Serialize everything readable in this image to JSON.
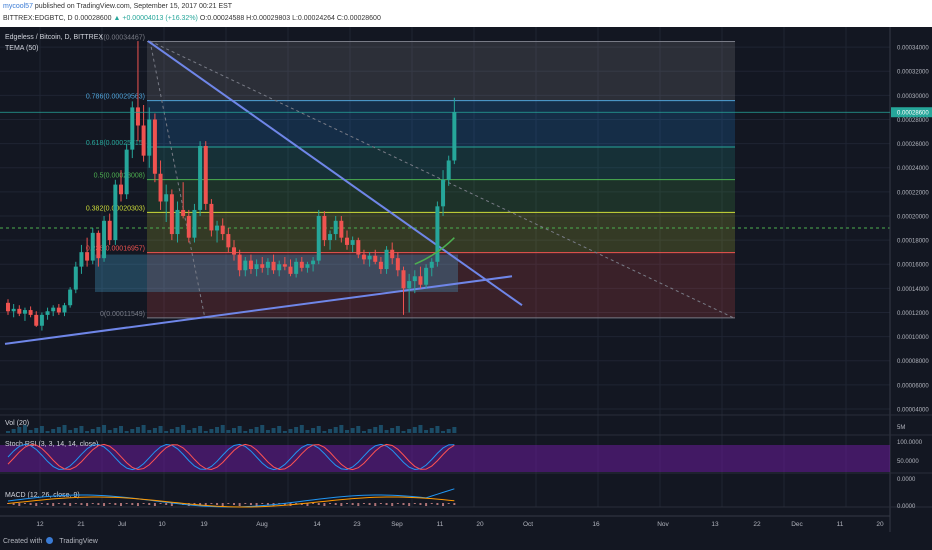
{
  "header": {
    "user": "mycool57",
    "published_text": " published on TradingView.com, September 15, 2017 00:21 EST",
    "symbol_line": "BITTREX:EDGBTC, D  0.00028600",
    "change": "▲ +0.00004013 (+16.32%)",
    "ohlc": "O:0.00024588  H:0.00029803  L:0.00024264  C:0.00028600"
  },
  "legend": {
    "title": "Edgeless / Bitcoin, D, BITTREX",
    "tema": "TEMA (50)",
    "vol": "Vol (20)",
    "stoch": "Stoch RSI (3, 3, 14, 14, close)",
    "macd": "MACD (12, 26, close, 9)"
  },
  "colors": {
    "up": "#26a69a",
    "down": "#ef5350",
    "trendline": "#6f86e8",
    "stoch_k": "#2196f3",
    "stoch_d": "#ff5252",
    "stoch_band": "#6a1b9a",
    "macd": "#2196f3",
    "signal": "#ff9800"
  },
  "chart_data": {
    "type": "candlestick",
    "symbol": "EDGBTC",
    "timeframe": "D",
    "ylim": [
      3.5e-05,
      0.000355
    ],
    "y_ticks": [
      "0.00034000",
      "0.00032000",
      "0.00030000",
      "0.00028000",
      "0.00026000",
      "0.00024000",
      "0.00022000",
      "0.00020000",
      "0.00018000",
      "0.00016000",
      "0.00014000",
      "0.00012000",
      "0.00010000",
      "0.00008000",
      "0.00006000",
      "0.00004000"
    ],
    "x_ticks": [
      "12",
      "21",
      "Jul",
      "10",
      "19",
      "Aug",
      "14",
      "23",
      "Sep",
      "11",
      "20",
      "Oct",
      "16",
      "Nov",
      "13",
      "22",
      "Dec",
      "11",
      "20"
    ],
    "last_price_label": "0.00028600",
    "fib_levels": [
      {
        "label": "1(0.00034467)",
        "value": 0.00034467,
        "color": "#787b86"
      },
      {
        "label": "0.786(0.00029563)",
        "value": 0.00029563,
        "color": "#4fa3d8"
      },
      {
        "label": "0.618(0.00025715)",
        "value": 0.00025715,
        "color": "#26a69a"
      },
      {
        "label": "0.5(0.00023008)",
        "value": 0.00023008,
        "color": "#4caf50"
      },
      {
        "label": "0.382(0.00020303)",
        "value": 0.00020303,
        "color": "#cddc39"
      },
      {
        "label": "0.236(0.00016957)",
        "value": 0.00016957,
        "color": "#ef5350"
      },
      {
        "label": "0(0.00011549)",
        "value": 0.00011549,
        "color": "#787b86"
      }
    ],
    "candles_ohlc": [
      [
        0.000128,
        0.000131,
        0.000118,
        0.000121
      ],
      [
        0.000121,
        0.000127,
        0.000116,
        0.000123
      ],
      [
        0.000123,
        0.000126,
        0.000117,
        0.000119
      ],
      [
        0.000119,
        0.000124,
        0.000113,
        0.000122
      ],
      [
        0.000122,
        0.000125,
        0.000116,
        0.000118
      ],
      [
        0.000118,
        0.000121,
        0.000108,
        0.000109
      ],
      [
        0.000109,
        0.00012,
        0.000105,
        0.000118
      ],
      [
        0.000118,
        0.000124,
        0.000114,
        0.000121
      ],
      [
        0.000121,
        0.000126,
        0.000117,
        0.000124
      ],
      [
        0.000124,
        0.000127,
        0.000118,
        0.00012
      ],
      [
        0.00012,
        0.000128,
        0.000117,
        0.000126
      ],
      [
        0.000126,
        0.000141,
        0.000124,
        0.000139
      ],
      [
        0.000139,
        0.000162,
        0.000136,
        0.000158
      ],
      [
        0.000158,
        0.000176,
        0.000152,
        0.00017
      ],
      [
        0.00017,
        0.000182,
        0.000158,
        0.000163
      ],
      [
        0.000163,
        0.00019,
        0.00016,
        0.000186
      ],
      [
        0.000186,
        0.000188,
        0.000158,
        0.000165
      ],
      [
        0.000165,
        0.0002,
        0.000162,
        0.000196
      ],
      [
        0.000196,
        0.000202,
        0.000176,
        0.00018
      ],
      [
        0.00018,
        0.00023,
        0.000176,
        0.000226
      ],
      [
        0.000226,
        0.000238,
        0.000212,
        0.000218
      ],
      [
        0.000218,
        0.00026,
        0.000214,
        0.000255
      ],
      [
        0.000255,
        0.000295,
        0.000248,
        0.00029
      ],
      [
        0.00029,
        0.000345,
        0.000262,
        0.000275
      ],
      [
        0.000275,
        0.000292,
        0.000245,
        0.00025
      ],
      [
        0.00025,
        0.00029,
        0.00024,
        0.00028
      ],
      [
        0.00028,
        0.000285,
        0.000228,
        0.000235
      ],
      [
        0.000235,
        0.000246,
        0.000205,
        0.000212
      ],
      [
        0.000212,
        0.000226,
        0.000195,
        0.000218
      ],
      [
        0.000218,
        0.000222,
        0.00018,
        0.000185
      ],
      [
        0.000185,
        0.000212,
        0.000178,
        0.000205
      ],
      [
        0.000205,
        0.000228,
        0.000198,
        0.0002
      ],
      [
        0.0002,
        0.000205,
        0.000178,
        0.000182
      ],
      [
        0.000182,
        0.00021,
        0.000178,
        0.000205
      ],
      [
        0.000205,
        0.000262,
        0.0002,
        0.000258
      ],
      [
        0.000258,
        0.000262,
        0.000205,
        0.00021
      ],
      [
        0.00021,
        0.000214,
        0.000183,
        0.000188
      ],
      [
        0.000188,
        0.000196,
        0.000178,
        0.000192
      ],
      [
        0.000192,
        0.000198,
        0.00018,
        0.000185
      ],
      [
        0.000185,
        0.00019,
        0.00017,
        0.000174
      ],
      [
        0.000174,
        0.00018,
        0.000163,
        0.000168
      ],
      [
        0.000168,
        0.000172,
        0.00015,
        0.000155
      ],
      [
        0.000155,
        0.000166,
        0.00015,
        0.000163
      ],
      [
        0.000163,
        0.000168,
        0.000152,
        0.000156
      ],
      [
        0.000156,
        0.000164,
        0.00015,
        0.00016
      ],
      [
        0.00016,
        0.000166,
        0.000153,
        0.000157
      ],
      [
        0.000157,
        0.000165,
        0.000151,
        0.000162
      ],
      [
        0.000162,
        0.000168,
        0.000152,
        0.000155
      ],
      [
        0.000155,
        0.000163,
        0.00015,
        0.00016
      ],
      [
        0.00016,
        0.000166,
        0.000155,
        0.000158
      ],
      [
        0.000158,
        0.000164,
        0.00015,
        0.000152
      ],
      [
        0.000152,
        0.000165,
        0.000149,
        0.000162
      ],
      [
        0.000162,
        0.000166,
        0.000154,
        0.000157
      ],
      [
        0.000157,
        0.000162,
        0.000153,
        0.00016
      ],
      [
        0.00016,
        0.000166,
        0.000154,
        0.000163
      ],
      [
        0.000163,
        0.000205,
        0.00016,
        0.0002
      ],
      [
        0.0002,
        0.000204,
        0.000175,
        0.00018
      ],
      [
        0.00018,
        0.000188,
        0.000172,
        0.000185
      ],
      [
        0.000185,
        0.0002,
        0.00018,
        0.000196
      ],
      [
        0.000196,
        0.0002,
        0.000178,
        0.000182
      ],
      [
        0.000182,
        0.000188,
        0.000172,
        0.000176
      ],
      [
        0.000176,
        0.000183,
        0.00017,
        0.00018
      ],
      [
        0.00018,
        0.000182,
        0.000165,
        0.000168
      ],
      [
        0.000168,
        0.000172,
        0.00016,
        0.000164
      ],
      [
        0.000164,
        0.00017,
        0.000158,
        0.000167
      ],
      [
        0.000167,
        0.000172,
        0.00016,
        0.000162
      ],
      [
        0.000162,
        0.000166,
        0.000152,
        0.000156
      ],
      [
        0.000156,
        0.000175,
        0.000152,
        0.000172
      ],
      [
        0.000172,
        0.000178,
        0.00016,
        0.000165
      ],
      [
        0.000165,
        0.00017,
        0.00015,
        0.000155
      ],
      [
        0.000155,
        0.000158,
        0.000118,
        0.00014
      ],
      [
        0.00014,
        0.000152,
        0.00012,
        0.000146
      ],
      [
        0.000146,
        0.000155,
        0.000136,
        0.00015
      ],
      [
        0.00015,
        0.000158,
        0.00014,
        0.000143
      ],
      [
        0.000143,
        0.00016,
        0.00014,
        0.000157
      ],
      [
        0.000157,
        0.000165,
        0.00015,
        0.000162
      ],
      [
        0.000162,
        0.000212,
        0.000158,
        0.000208
      ],
      [
        0.000208,
        0.000238,
        0.0002,
        0.00023
      ],
      [
        0.00023,
        0.00025,
        0.000225,
        0.000246
      ],
      [
        0.000246,
        0.000298,
        0.000243,
        0.000286
      ]
    ]
  }
}
